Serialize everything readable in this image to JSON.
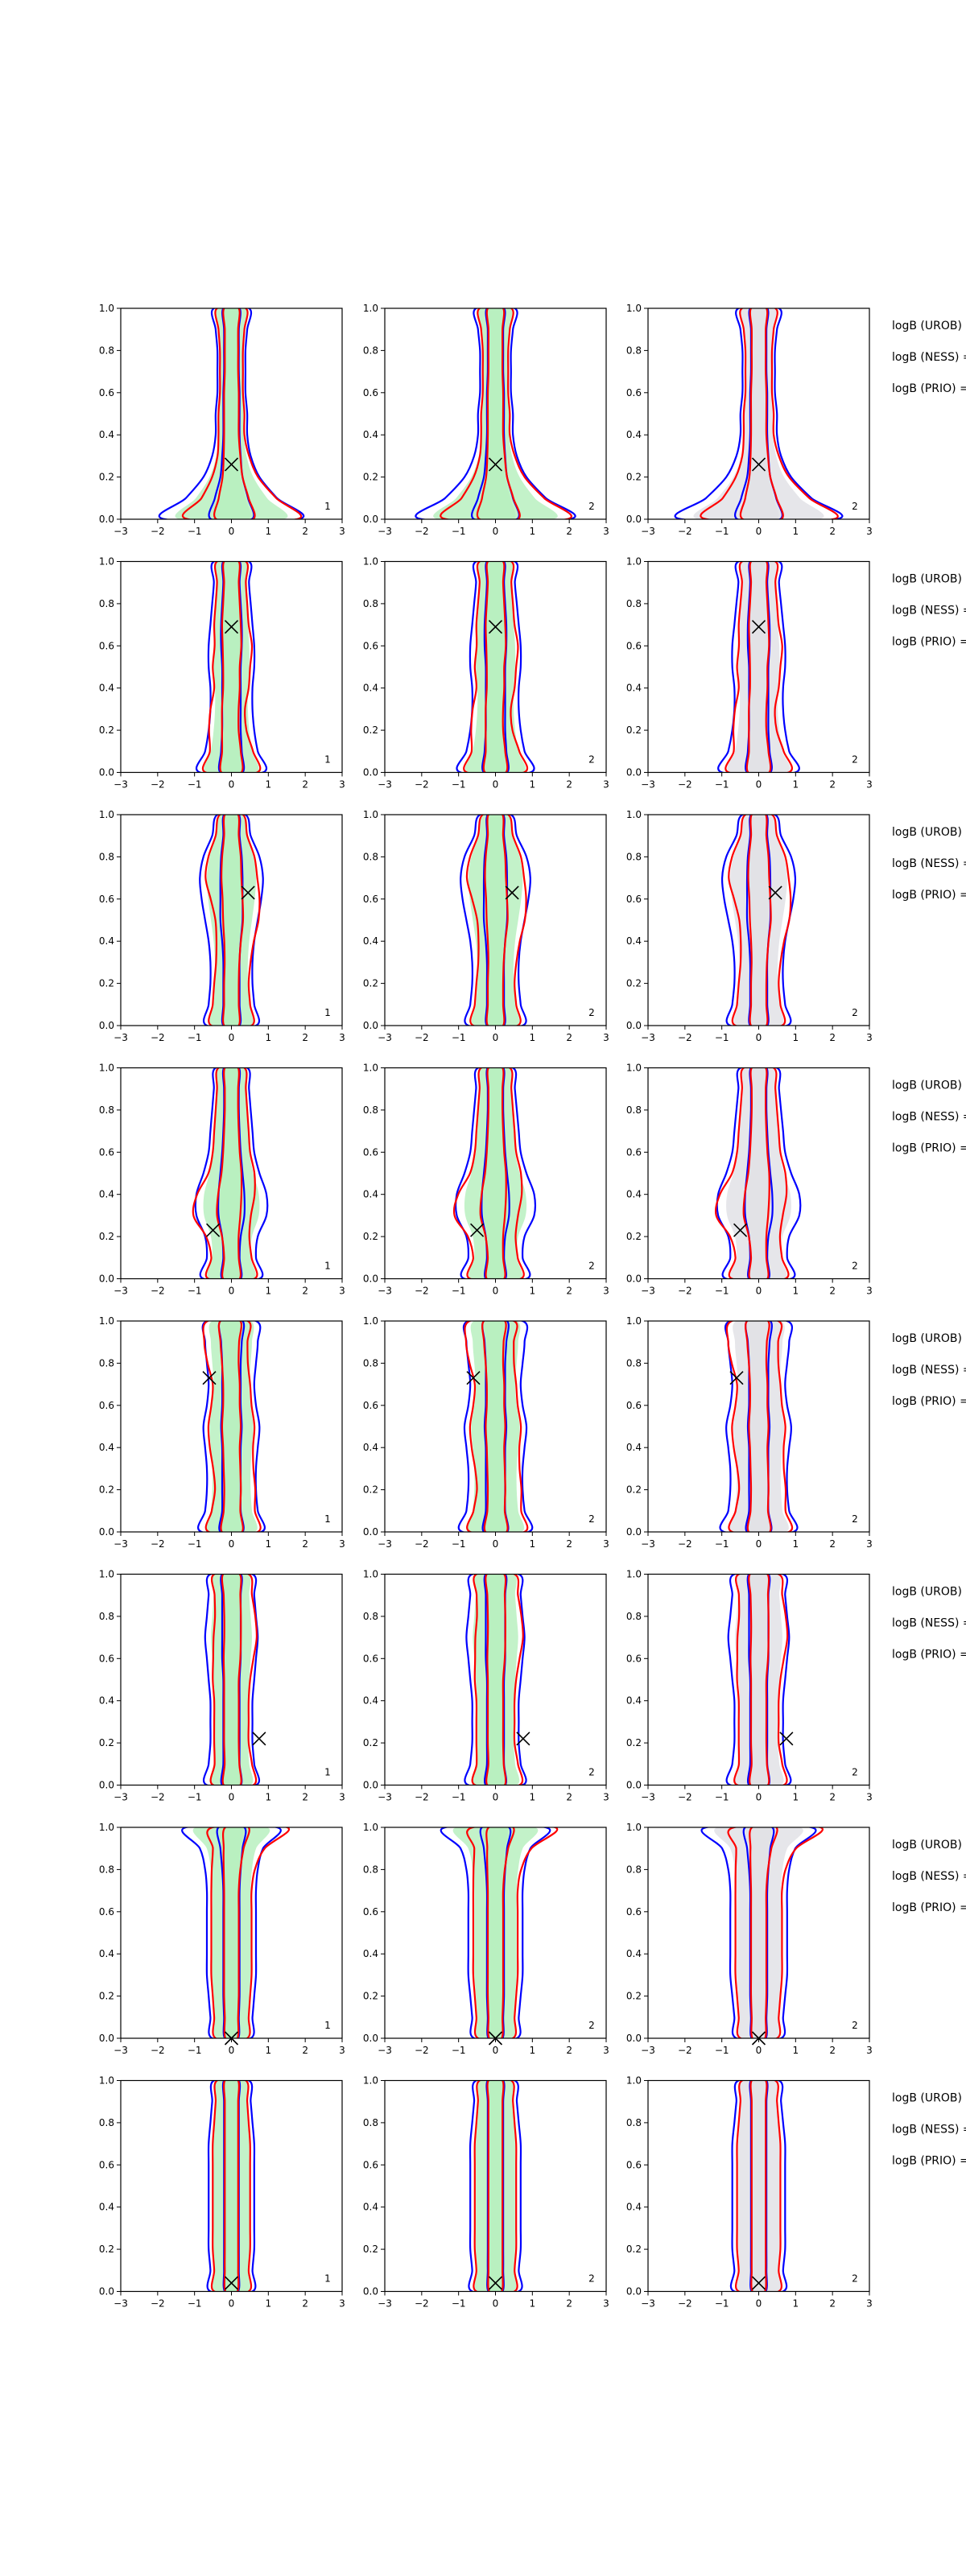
{
  "chart_data": {
    "type": "contour",
    "layout": {
      "rows": 8,
      "cols": 3
    },
    "x_ticks": [
      "−3",
      "−2",
      "−1",
      "0",
      "1",
      "2",
      "3"
    ],
    "y_ticks": [
      "0.0",
      "0.2",
      "0.4",
      "0.6",
      "0.8",
      "1.0"
    ],
    "xlim": [
      -3,
      3
    ],
    "ylim": [
      0,
      1
    ],
    "colors": {
      "blue": "#0000ff",
      "red": "#ff0000",
      "green_fill": "#b9f0c0",
      "grey_fill": "#e2e2e6"
    },
    "panel_labels": [
      "1",
      "2",
      "2"
    ],
    "logB_labels": [
      "logB (UROB) =",
      "logB (NESS) =",
      "logB (PRIO) ="
    ],
    "rows": [
      {
        "marker": [
          0.0,
          0.26
        ],
        "column_fill": [
          "green",
          "green",
          "grey"
        ]
      },
      {
        "marker": [
          0.0,
          0.69
        ],
        "column_fill": [
          "green",
          "green",
          "grey"
        ]
      },
      {
        "marker": [
          0.45,
          0.63
        ],
        "column_fill": [
          "green",
          "green",
          "grey"
        ]
      },
      {
        "marker": [
          -0.5,
          0.23
        ],
        "column_fill": [
          "green",
          "green",
          "grey"
        ]
      },
      {
        "marker": [
          -0.6,
          0.73
        ],
        "column_fill": [
          "green",
          "green",
          "grey"
        ]
      },
      {
        "marker": [
          0.75,
          0.22
        ],
        "column_fill": [
          "green",
          "green",
          "grey"
        ]
      },
      {
        "marker": [
          0.0,
          0.0
        ],
        "column_fill": [
          "green",
          "green",
          "grey"
        ]
      },
      {
        "marker": [
          0.0,
          0.04
        ],
        "column_fill": [
          "green",
          "green",
          "grey"
        ]
      }
    ]
  }
}
